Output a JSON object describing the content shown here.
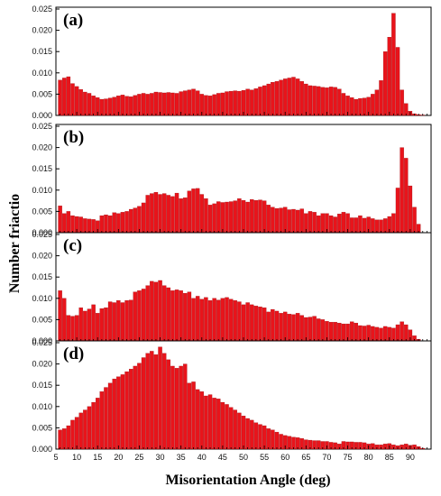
{
  "figure": {
    "xlabel": "Misorientation Angle (deg)",
    "ylabel": "Number friactio"
  },
  "chart_data": [
    {
      "type": "bar",
      "panel_label": "(a)",
      "bar_color": "#e8141b",
      "xlim": [
        5,
        95
      ],
      "ylim": [
        0,
        0.025
      ],
      "yticks": [
        "0.000",
        "0.005",
        "0.010",
        "0.015",
        "0.020",
        "0.025"
      ],
      "x": [
        6,
        7,
        8,
        9,
        10,
        11,
        12,
        13,
        14,
        15,
        16,
        17,
        18,
        19,
        20,
        21,
        22,
        23,
        24,
        25,
        26,
        27,
        28,
        29,
        30,
        31,
        32,
        33,
        34,
        35,
        36,
        37,
        38,
        39,
        40,
        41,
        42,
        43,
        44,
        45,
        46,
        47,
        48,
        49,
        50,
        51,
        52,
        53,
        54,
        55,
        56,
        57,
        58,
        59,
        60,
        61,
        62,
        63,
        64,
        65,
        66,
        67,
        68,
        69,
        70,
        71,
        72,
        73,
        74,
        75,
        76,
        77,
        78,
        79,
        80,
        81,
        82,
        83,
        84,
        85,
        86,
        87,
        88,
        89,
        90,
        91,
        92,
        93
      ],
      "values": [
        0.0083,
        0.0088,
        0.0091,
        0.0075,
        0.0068,
        0.0061,
        0.0055,
        0.0052,
        0.0046,
        0.0042,
        0.0038,
        0.0039,
        0.0041,
        0.0043,
        0.0046,
        0.0048,
        0.0045,
        0.0044,
        0.0047,
        0.005,
        0.0052,
        0.005,
        0.0052,
        0.0055,
        0.0054,
        0.0053,
        0.0054,
        0.0053,
        0.0052,
        0.0056,
        0.0058,
        0.006,
        0.0062,
        0.0058,
        0.005,
        0.0047,
        0.0046,
        0.0049,
        0.0052,
        0.0053,
        0.0056,
        0.0057,
        0.0058,
        0.0057,
        0.0059,
        0.0062,
        0.006,
        0.0063,
        0.0067,
        0.007,
        0.0074,
        0.0078,
        0.008,
        0.0083,
        0.0086,
        0.0088,
        0.009,
        0.0086,
        0.008,
        0.0074,
        0.007,
        0.0069,
        0.0068,
        0.0066,
        0.0065,
        0.0067,
        0.0066,
        0.0062,
        0.0052,
        0.0046,
        0.0042,
        0.0038,
        0.004,
        0.0041,
        0.0043,
        0.005,
        0.006,
        0.0082,
        0.015,
        0.0184,
        0.024,
        0.016,
        0.006,
        0.0028,
        0.001,
        0.0004,
        0.0002,
        0.0001
      ]
    },
    {
      "type": "bar",
      "panel_label": "(b)",
      "bar_color": "#e8141b",
      "xlim": [
        5,
        95
      ],
      "ylim": [
        0,
        0.025
      ],
      "yticks": [
        "0.000",
        "0.005",
        "0.010",
        "0.015",
        "0.020",
        "0.025"
      ],
      "x": [
        6,
        7,
        8,
        9,
        10,
        11,
        12,
        13,
        14,
        15,
        16,
        17,
        18,
        19,
        20,
        21,
        22,
        23,
        24,
        25,
        26,
        27,
        28,
        29,
        30,
        31,
        32,
        33,
        34,
        35,
        36,
        37,
        38,
        39,
        40,
        41,
        42,
        43,
        44,
        45,
        46,
        47,
        48,
        49,
        50,
        51,
        52,
        53,
        54,
        55,
        56,
        57,
        58,
        59,
        60,
        61,
        62,
        63,
        64,
        65,
        66,
        67,
        68,
        69,
        70,
        71,
        72,
        73,
        74,
        75,
        76,
        77,
        78,
        79,
        80,
        81,
        82,
        83,
        84,
        85,
        86,
        87,
        88,
        89,
        90,
        91,
        92
      ],
      "values": [
        0.0063,
        0.0045,
        0.005,
        0.004,
        0.0038,
        0.0037,
        0.0033,
        0.0032,
        0.0031,
        0.0028,
        0.004,
        0.0042,
        0.004,
        0.0047,
        0.0045,
        0.0048,
        0.005,
        0.0055,
        0.0058,
        0.0062,
        0.007,
        0.0088,
        0.0092,
        0.0095,
        0.009,
        0.0092,
        0.0088,
        0.0085,
        0.0093,
        0.008,
        0.0082,
        0.0098,
        0.0103,
        0.0104,
        0.009,
        0.008,
        0.0065,
        0.0068,
        0.0073,
        0.0071,
        0.0072,
        0.0073,
        0.0075,
        0.008,
        0.0076,
        0.0072,
        0.0078,
        0.0076,
        0.0077,
        0.0075,
        0.0065,
        0.006,
        0.0057,
        0.0058,
        0.006,
        0.0054,
        0.0055,
        0.0053,
        0.0056,
        0.0045,
        0.005,
        0.0048,
        0.004,
        0.0045,
        0.0045,
        0.004,
        0.0037,
        0.0044,
        0.0048,
        0.0045,
        0.0035,
        0.0035,
        0.004,
        0.0034,
        0.0037,
        0.0033,
        0.003,
        0.003,
        0.0033,
        0.0038,
        0.0045,
        0.0105,
        0.02,
        0.0175,
        0.011,
        0.006,
        0.002
      ]
    },
    {
      "type": "bar",
      "panel_label": "(c)",
      "bar_color": "#e8141b",
      "xlim": [
        5,
        95
      ],
      "ylim": [
        0,
        0.025
      ],
      "yticks": [
        "0.000",
        "0.005",
        "0.010",
        "0.015",
        "0.020",
        "0.025"
      ],
      "x": [
        6,
        7,
        8,
        9,
        10,
        11,
        12,
        13,
        14,
        15,
        16,
        17,
        18,
        19,
        20,
        21,
        22,
        23,
        24,
        25,
        26,
        27,
        28,
        29,
        30,
        31,
        32,
        33,
        34,
        35,
        36,
        37,
        38,
        39,
        40,
        41,
        42,
        43,
        44,
        45,
        46,
        47,
        48,
        49,
        50,
        51,
        52,
        53,
        54,
        55,
        56,
        57,
        58,
        59,
        60,
        61,
        62,
        63,
        64,
        65,
        66,
        67,
        68,
        69,
        70,
        71,
        72,
        73,
        74,
        75,
        76,
        77,
        78,
        79,
        80,
        81,
        82,
        83,
        84,
        85,
        86,
        87,
        88,
        89,
        90,
        91,
        92
      ],
      "values": [
        0.0118,
        0.01,
        0.006,
        0.0058,
        0.006,
        0.0078,
        0.007,
        0.0075,
        0.0085,
        0.0065,
        0.0076,
        0.0078,
        0.0092,
        0.009,
        0.0095,
        0.009,
        0.0095,
        0.0096,
        0.0115,
        0.0118,
        0.0122,
        0.013,
        0.014,
        0.0138,
        0.0142,
        0.013,
        0.0125,
        0.0118,
        0.012,
        0.0118,
        0.0112,
        0.0115,
        0.01,
        0.0105,
        0.0098,
        0.0102,
        0.0095,
        0.01,
        0.0096,
        0.01,
        0.0102,
        0.0098,
        0.0095,
        0.0092,
        0.0085,
        0.009,
        0.0085,
        0.0082,
        0.008,
        0.0078,
        0.0068,
        0.0074,
        0.007,
        0.0065,
        0.0068,
        0.0063,
        0.0062,
        0.0065,
        0.006,
        0.0055,
        0.0056,
        0.0058,
        0.0052,
        0.005,
        0.0046,
        0.0044,
        0.0044,
        0.0042,
        0.004,
        0.004,
        0.0045,
        0.0042,
        0.0036,
        0.0035,
        0.0037,
        0.0034,
        0.0032,
        0.003,
        0.0034,
        0.0032,
        0.003,
        0.0038,
        0.0045,
        0.0038,
        0.0026,
        0.0012,
        0.0004
      ]
    },
    {
      "type": "bar",
      "panel_label": "(d)",
      "bar_color": "#e8141b",
      "xlim": [
        5,
        95
      ],
      "ylim": [
        0,
        0.025
      ],
      "yticks": [
        "0.000",
        "0.005",
        "0.010",
        "0.015",
        "0.020",
        "0.025"
      ],
      "xticks": [
        "5",
        "10",
        "15",
        "20",
        "25",
        "30",
        "35",
        "40",
        "45",
        "50",
        "55",
        "60",
        "65",
        "70",
        "75",
        "80",
        "85",
        "90"
      ],
      "x": [
        6,
        7,
        8,
        9,
        10,
        11,
        12,
        13,
        14,
        15,
        16,
        17,
        18,
        19,
        20,
        21,
        22,
        23,
        24,
        25,
        26,
        27,
        28,
        29,
        30,
        31,
        32,
        33,
        34,
        35,
        36,
        37,
        38,
        39,
        40,
        41,
        42,
        43,
        44,
        45,
        46,
        47,
        48,
        49,
        50,
        51,
        52,
        53,
        54,
        55,
        56,
        57,
        58,
        59,
        60,
        61,
        62,
        63,
        64,
        65,
        66,
        67,
        68,
        69,
        70,
        71,
        72,
        73,
        74,
        75,
        76,
        77,
        78,
        79,
        80,
        81,
        82,
        83,
        84,
        85,
        86,
        87,
        88,
        89,
        90,
        91,
        92,
        93
      ],
      "values": [
        0.0045,
        0.0048,
        0.0055,
        0.0068,
        0.0075,
        0.0085,
        0.0092,
        0.01,
        0.011,
        0.012,
        0.0135,
        0.0145,
        0.0155,
        0.0165,
        0.017,
        0.0175,
        0.0182,
        0.0188,
        0.0195,
        0.0202,
        0.0215,
        0.0225,
        0.023,
        0.0222,
        0.024,
        0.0225,
        0.021,
        0.0195,
        0.019,
        0.0195,
        0.02,
        0.0155,
        0.0158,
        0.014,
        0.0135,
        0.0125,
        0.0128,
        0.012,
        0.0118,
        0.011,
        0.0105,
        0.0098,
        0.0092,
        0.0085,
        0.0078,
        0.0072,
        0.0068,
        0.0062,
        0.0058,
        0.0055,
        0.0048,
        0.0045,
        0.004,
        0.0035,
        0.0032,
        0.003,
        0.0028,
        0.0027,
        0.0025,
        0.0022,
        0.0021,
        0.002,
        0.002,
        0.0018,
        0.0018,
        0.0016,
        0.0015,
        0.0012,
        0.0018,
        0.0017,
        0.0017,
        0.0016,
        0.0016,
        0.0015,
        0.0012,
        0.0013,
        0.001,
        0.001,
        0.0012,
        0.0013,
        0.001,
        0.0008,
        0.001,
        0.0012,
        0.0009,
        0.001,
        0.0006,
        0.0002
      ]
    }
  ]
}
